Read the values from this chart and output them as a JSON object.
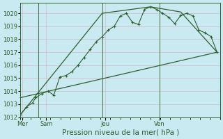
{
  "xlabel": "Pression niveau de la mer( hPa )",
  "bg_color": "#c8eaf0",
  "grid_color": "#d8b8c8",
  "line_color": "#2d6030",
  "ylim": [
    1012,
    1020.8
  ],
  "yticks": [
    1012,
    1013,
    1014,
    1015,
    1016,
    1017,
    1018,
    1019,
    1020
  ],
  "day_labels": [
    "Mer",
    "Sam",
    "Jeu",
    "Ven"
  ],
  "day_positions": [
    0.5,
    8.5,
    28.0,
    46.0
  ],
  "vline_x": [
    6.0,
    27.0,
    46.0
  ],
  "xlim": [
    0,
    66
  ],
  "line1_x": [
    0,
    2,
    4,
    5,
    7,
    9,
    11,
    13,
    15,
    17,
    19,
    21,
    23,
    25,
    27,
    29,
    31,
    33,
    35,
    37,
    39,
    41,
    43,
    45,
    47,
    49,
    51,
    53,
    55,
    57,
    59,
    61,
    63,
    65
  ],
  "line1_y": [
    1012.2,
    1012.8,
    1013.1,
    1013.5,
    1013.8,
    1014.0,
    1013.7,
    1015.1,
    1015.2,
    1015.5,
    1016.0,
    1016.6,
    1017.2,
    1017.8,
    1018.2,
    1018.7,
    1019.0,
    1019.8,
    1020.0,
    1019.3,
    1019.15,
    1020.3,
    1020.5,
    1020.3,
    1020.0,
    1019.7,
    1019.2,
    1019.85,
    1020.0,
    1019.8,
    1018.7,
    1018.5,
    1018.2,
    1017.0
  ],
  "line2_x": [
    0,
    27,
    43,
    53,
    65
  ],
  "line2_y": [
    1012.2,
    1020.0,
    1020.5,
    1020.1,
    1017.0
  ],
  "line3_x": [
    0,
    65
  ],
  "line3_y": [
    1013.5,
    1017.0
  ],
  "marker_size": 2.5,
  "tick_fontsize": 6,
  "label_fontsize": 7.5
}
